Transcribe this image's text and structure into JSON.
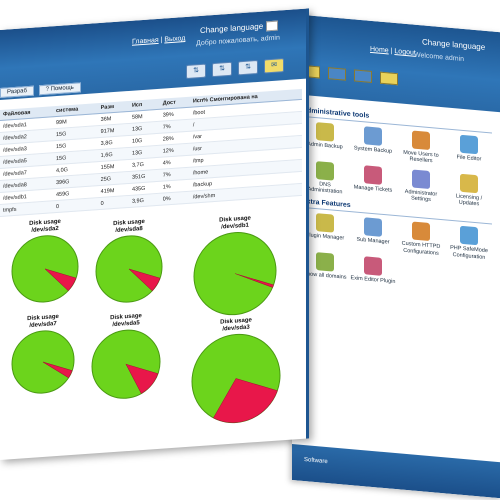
{
  "back_window": {
    "links": [
      "Home",
      "Logout"
    ],
    "change_language": "Change language",
    "welcome": "Welcome admin",
    "admin_tools_title": "Administrative tools",
    "admin_tools": [
      "Admin Backup",
      "System Backup",
      "Move Users to Resellers",
      "File Editor",
      "DNS Administration",
      "Manage Tickets",
      "Administrator Settings",
      "Licensing / Updates"
    ],
    "extra_title": "Extra Features",
    "extra": [
      "Plugin Manager",
      "Sub Manager",
      "Custom HTTPD Configurations",
      "PHP SafeMode Configuration",
      "Show all domains",
      "Exim Editor Plugin"
    ],
    "footer": "Software"
  },
  "front_window": {
    "nav": [
      "Главная",
      "Выход"
    ],
    "change_language": "Change language",
    "welcome": "Добро пожаловать, admin",
    "tabs": [
      "Разраб",
      "Помощь"
    ],
    "table_headers": [
      "Файловая",
      "система",
      "Разм",
      "Исп",
      "Дост",
      "Исп%",
      "Смонтирована на"
    ],
    "rows": [
      [
        "/dev/sda1",
        "99M",
        "36M",
        "58M",
        "39%",
        "/boot"
      ],
      [
        "/dev/sda2",
        "15G",
        "917M",
        "13G",
        "7%",
        "/"
      ],
      [
        "/dev/sda3",
        "15G",
        "3,8G",
        "10G",
        "28%",
        "/var"
      ],
      [
        "/dev/sda5",
        "15G",
        "1,6G",
        "13G",
        "12%",
        "/usr"
      ],
      [
        "/dev/sda7",
        "4,0G",
        "155M",
        "3,7G",
        "4%",
        "/tmp"
      ],
      [
        "/dev/sda8",
        "396G",
        "25G",
        "351G",
        "7%",
        "/home"
      ],
      [
        "/dev/sdb1",
        "459G",
        "419M",
        "435G",
        "1%",
        "/backup"
      ],
      [
        "tmpfs",
        "0",
        "0",
        "3,9G",
        "0%",
        "/dev/shm"
      ]
    ],
    "pies": [
      {
        "title": "Disk usage",
        "device": "/dev/sda2",
        "used_pct": 7
      },
      {
        "title": "Disk usage",
        "device": "/dev/sda8",
        "used_pct": 7
      },
      {
        "title": "Disk usage",
        "device": "/dev/sdb1",
        "used_pct": 1
      },
      {
        "title": "Disk usage",
        "device": "/dev/sda7",
        "used_pct": 4
      },
      {
        "title": "Disk usage",
        "device": "/dev/sda5",
        "used_pct": 12
      },
      {
        "title": "Disk usage",
        "device": "/dev/sda3",
        "used_pct": 28
      }
    ]
  },
  "colors": {
    "header": "#2f76b8",
    "used": "#e8174a",
    "free": "#6cd41c"
  }
}
